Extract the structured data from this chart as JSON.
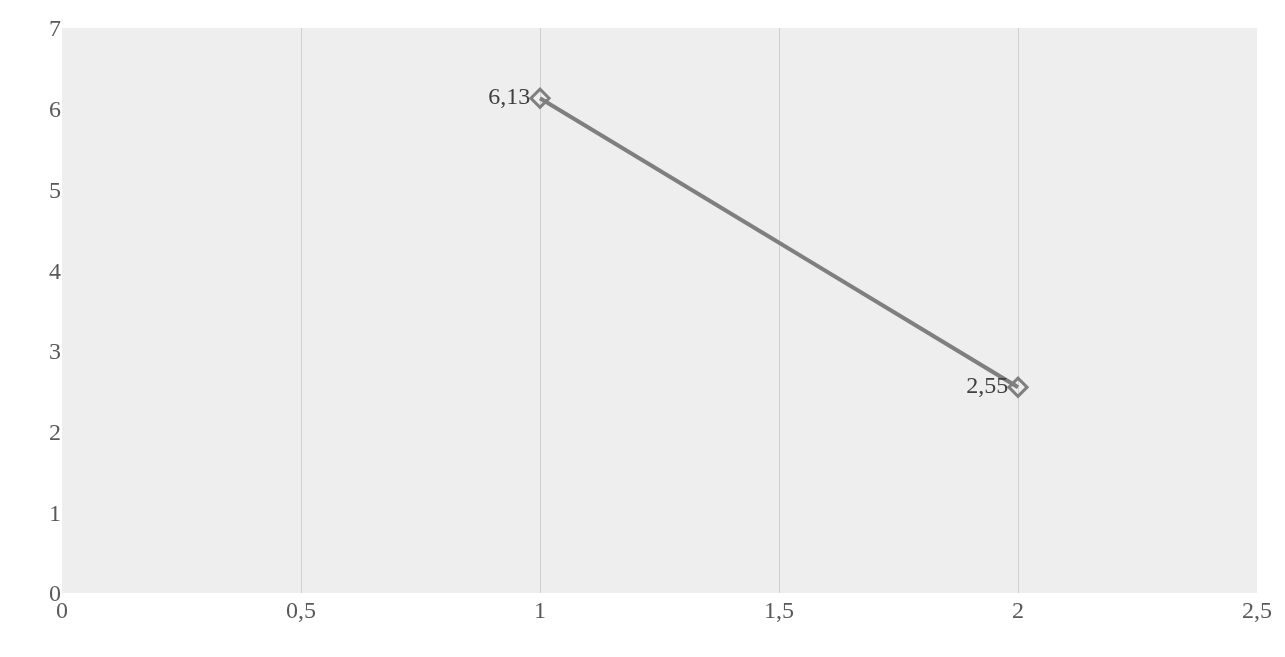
{
  "chart_data": {
    "type": "line",
    "x": [
      1,
      2
    ],
    "series": [
      {
        "color": "#7f7f7f",
        "values": [
          6.13,
          2.55
        ],
        "value_labels": [
          "6,13",
          "2,55"
        ]
      }
    ],
    "xlim": [
      0,
      2.5
    ],
    "xticks": [
      0,
      {
        "value": 0.5,
        "label": "0,5"
      },
      1,
      {
        "value": 1.5,
        "label": "1,5"
      },
      2,
      {
        "value": 2.5,
        "label": "2,5"
      }
    ],
    "ylim": [
      0,
      7
    ],
    "yticks": [
      0,
      1,
      2,
      3,
      4,
      5,
      6,
      7
    ],
    "grid": "x",
    "marker": "diamond",
    "line_style": "solid"
  }
}
